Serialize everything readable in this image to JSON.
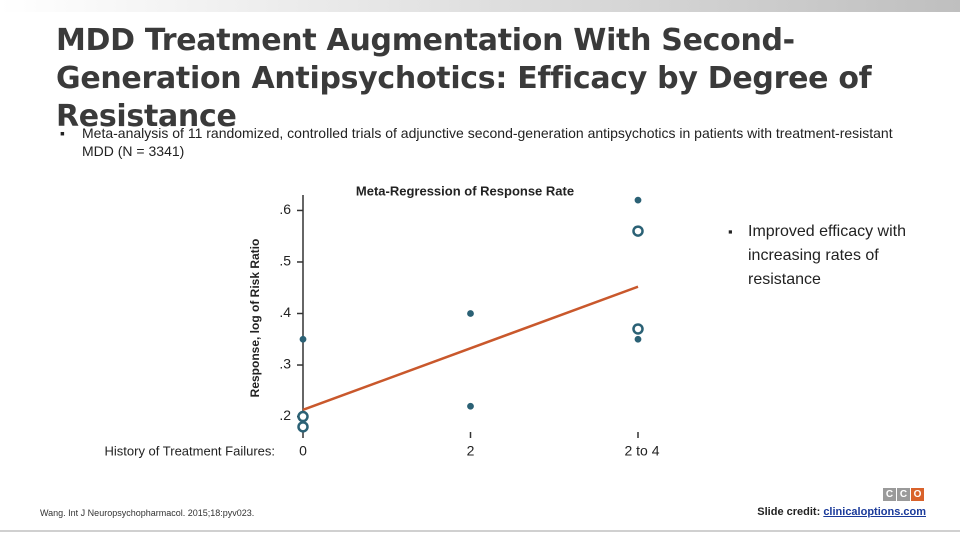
{
  "title": "MDD Treatment Augmentation With Second-Generation Antipsychotics: Efficacy by Degree of Resistance",
  "bullet": "Meta-analysis of 11 randomized, controlled trials of adjunctive second-generation antipsychotics in patients with treatment-resistant MDD (N = 3341)",
  "side_note": "Improved efficacy with increasing rates of resistance",
  "citation": "Wang. Int J Neuropsychopharmacol. 2015;18:pyv023.",
  "credit_label": "Slide credit:",
  "credit_link": "clinicaloptions.com",
  "logo": [
    "C",
    "C",
    "O"
  ],
  "chart_data": {
    "type": "scatter",
    "title": "Meta-Regression of Response Rate",
    "x_label": "History of Treatment Failures:",
    "y_label": "Response, log of Risk Ratio",
    "categories": [
      "0",
      "2",
      "2 to 4"
    ],
    "points": {
      "x": [
        "0",
        "0",
        "0",
        "2",
        "2",
        "2 to 4",
        "2 to 4",
        "2 to 4",
        "2 to 4"
      ],
      "y": [
        0.35,
        0.2,
        0.18,
        0.4,
        0.22,
        0.62,
        0.56,
        0.37,
        0.35
      ],
      "hollow": [
        false,
        true,
        true,
        false,
        false,
        false,
        true,
        true,
        false
      ],
      "color": "#2b6175"
    },
    "trend": {
      "x": [
        "0",
        "2 to 4"
      ],
      "values": [
        0.213,
        0.452
      ],
      "color": "#c9582c"
    },
    "ylim": [
      0.17,
      0.63
    ],
    "yticks": [
      {
        "value": 0.2,
        "label": ".2"
      },
      {
        "value": 0.3,
        "label": ".3"
      },
      {
        "value": 0.4,
        "label": ".4"
      },
      {
        "value": 0.5,
        "label": ".5"
      },
      {
        "value": 0.6,
        "label": ".6"
      }
    ]
  }
}
